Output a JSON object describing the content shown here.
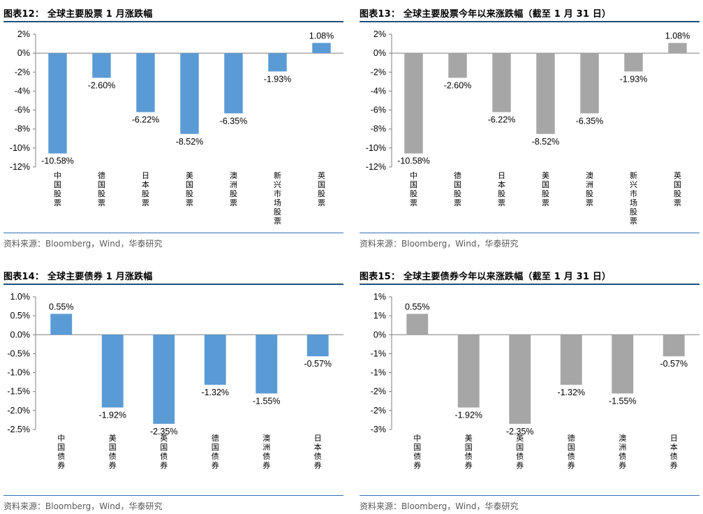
{
  "chart_data": [
    {
      "type": "bar",
      "title": "图表12： 全球主要股票 1 月涨跌幅",
      "categories": [
        "中国股票",
        "德国股票",
        "日本股票",
        "美国股票",
        "澳洲股票",
        "新兴市场股票",
        "英国股票"
      ],
      "values": [
        -10.58,
        -2.6,
        -6.22,
        -8.52,
        -6.35,
        -1.93,
        1.08
      ],
      "labels": [
        "-10.58%",
        "-2.60%",
        "-6.22%",
        "-8.52%",
        "-6.35%",
        "-1.93%",
        "1.08%"
      ],
      "yticks": [
        "2%",
        "0%",
        "-2%",
        "-4%",
        "-6%",
        "-8%",
        "-10%",
        "-12%"
      ],
      "ylim": [
        -12,
        2
      ],
      "bar_color": "#5b9bd5",
      "source": "资料来源：Bloomberg，Wind，华泰研究"
    },
    {
      "type": "bar",
      "title": "图表13： 全球主要股票今年以来涨跌幅（截至 1 月 31 日）",
      "categories": [
        "中国股票",
        "德国股票",
        "日本股票",
        "美国股票",
        "澳洲股票",
        "新兴市场股票",
        "英国股票"
      ],
      "values": [
        -10.58,
        -2.6,
        -6.22,
        -8.52,
        -6.35,
        -1.93,
        1.08
      ],
      "labels": [
        "-10.58%",
        "-2.60%",
        "-6.22%",
        "-8.52%",
        "-6.35%",
        "-1.93%",
        "1.08%"
      ],
      "yticks": [
        "2%",
        "0%",
        "-2%",
        "-4%",
        "-6%",
        "-8%",
        "-10%",
        "-12%"
      ],
      "ylim": [
        -12,
        2
      ],
      "bar_color": "#a6a6a6",
      "source": "资料来源：Bloomberg，Wind，华泰研究"
    },
    {
      "type": "bar",
      "title": "图表14： 全球主要债券 1 月涨跌幅",
      "categories": [
        "中国债券",
        "美国债券",
        "英国债券",
        "德国债券",
        "澳洲债券",
        "日本债券"
      ],
      "values": [
        0.55,
        -1.92,
        -2.35,
        -1.32,
        -1.55,
        -0.57
      ],
      "labels": [
        "0.55%",
        "-1.92%",
        "-2.35%",
        "-1.32%",
        "-1.55%",
        "-0.57%"
      ],
      "yticks": [
        "1.0%",
        "0.5%",
        "0.0%",
        "-0.5%",
        "-1.0%",
        "-1.5%",
        "-2.0%",
        "-2.5%"
      ],
      "ylim": [
        -2.5,
        1.0
      ],
      "bar_color": "#5b9bd5",
      "source": "资料来源：Bloomberg，Wind，华泰研究"
    },
    {
      "type": "bar",
      "title": "图表15： 全球主要债券今年以来涨跌幅（截至 1 月 31 日）",
      "categories": [
        "中国债券",
        "美国债券",
        "英国债券",
        "德国债券",
        "澳洲债券",
        "日本债券"
      ],
      "values": [
        0.55,
        -1.92,
        -2.35,
        -1.32,
        -1.55,
        -0.57
      ],
      "labels": [
        "0.55%",
        "-1.92%",
        "-2.35%",
        "-1.32%",
        "-1.55%",
        "-0.57%"
      ],
      "yticks": [
        "1%",
        "1%",
        "0%",
        "-1%",
        "-1%",
        "-2%",
        "-2%",
        "-3%"
      ],
      "ylim": [
        -2.5,
        1.0
      ],
      "bar_color": "#a6a6a6",
      "source": "资料来源：Bloomberg，Wind，华泰研究"
    }
  ]
}
